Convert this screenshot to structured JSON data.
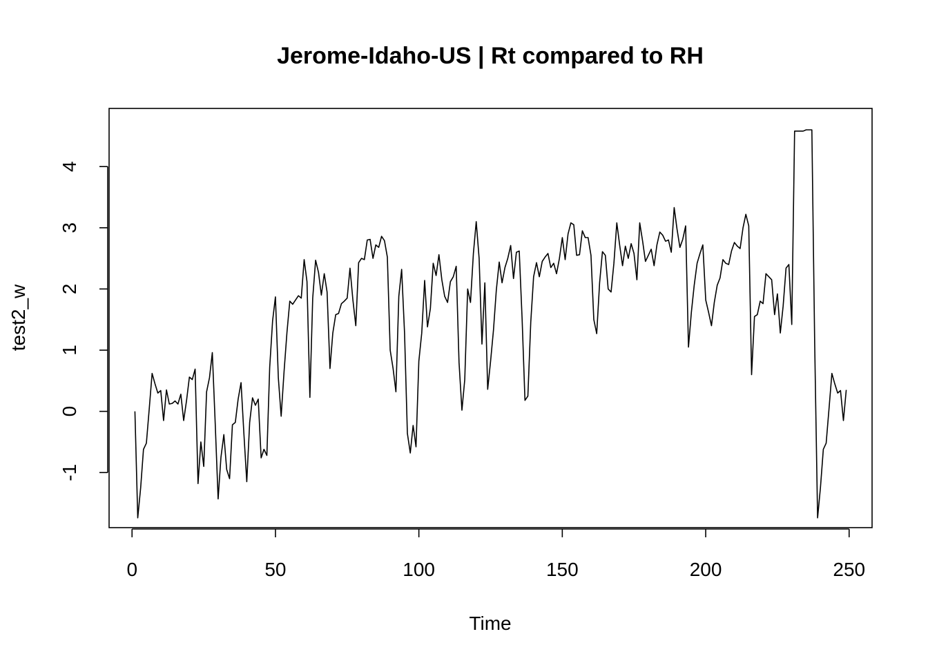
{
  "chart_data": {
    "type": "line",
    "title": "Jerome-Idaho-US | Rt compared to RH",
    "xlabel": "Time",
    "ylabel": "test2_w",
    "xlim": [
      -8,
      258
    ],
    "ylim": [
      -1.9,
      4.95
    ],
    "x_ticks": [
      0,
      50,
      100,
      150,
      200,
      250
    ],
    "y_ticks": [
      -1,
      0,
      1,
      2,
      3,
      4
    ],
    "x_tick_labels": [
      "0",
      "50",
      "100",
      "150",
      "200",
      "250"
    ],
    "y_tick_labels": [
      "-1",
      "0",
      "1",
      "2",
      "3",
      "4"
    ],
    "grid": false,
    "series": [
      {
        "x_start": 1,
        "values": [
          0.0,
          -1.74,
          -1.25,
          -0.62,
          -0.52,
          0.05,
          0.62,
          0.45,
          0.3,
          0.34,
          -0.15,
          0.35,
          0.12,
          0.13,
          0.17,
          0.12,
          0.28,
          -0.15,
          0.18,
          0.56,
          0.52,
          0.69,
          -1.18,
          -0.5,
          -0.9,
          0.32,
          0.55,
          0.96,
          -0.2,
          -1.43,
          -0.75,
          -0.38,
          -0.95,
          -1.1,
          -0.22,
          -0.18,
          0.2,
          0.47,
          -0.36,
          -1.15,
          -0.18,
          0.22,
          0.1,
          0.2,
          -0.76,
          -0.62,
          -0.72,
          0.72,
          1.48,
          1.87,
          0.55,
          -0.08,
          0.65,
          1.29,
          1.8,
          1.75,
          1.82,
          1.89,
          1.85,
          2.48,
          2.12,
          0.23,
          1.85,
          2.47,
          2.27,
          1.9,
          2.25,
          1.95,
          0.7,
          1.28,
          1.58,
          1.6,
          1.76,
          1.8,
          1.85,
          2.34,
          1.82,
          1.4,
          2.43,
          2.5,
          2.48,
          2.8,
          2.81,
          2.5,
          2.72,
          2.68,
          2.86,
          2.79,
          2.52,
          1.0,
          0.7,
          0.32,
          1.88,
          2.32,
          1.28,
          -0.36,
          -0.68,
          -0.23,
          -0.58,
          0.82,
          1.28,
          2.14,
          1.38,
          1.68,
          2.42,
          2.22,
          2.56,
          2.15,
          1.88,
          1.78,
          2.12,
          2.2,
          2.37,
          0.8,
          0.02,
          0.52,
          2.0,
          1.78,
          2.58,
          3.1,
          2.5,
          1.1,
          2.1,
          0.36,
          0.82,
          1.33,
          1.98,
          2.44,
          2.1,
          2.35,
          2.5,
          2.71,
          2.17,
          2.6,
          2.62,
          1.5,
          0.18,
          0.25,
          1.46,
          2.2,
          2.43,
          2.2,
          2.45,
          2.52,
          2.58,
          2.35,
          2.42,
          2.25,
          2.5,
          2.84,
          2.48,
          2.9,
          3.08,
          3.05,
          2.55,
          2.56,
          2.95,
          2.84,
          2.84,
          2.55,
          1.5,
          1.27,
          2.1,
          2.61,
          2.55,
          2.0,
          1.95,
          2.42,
          3.08,
          2.72,
          2.38,
          2.7,
          2.5,
          2.74,
          2.58,
          2.15,
          3.08,
          2.78,
          2.45,
          2.55,
          2.65,
          2.38,
          2.72,
          2.93,
          2.88,
          2.78,
          2.8,
          2.6,
          3.33,
          2.98,
          2.68,
          2.81,
          3.03,
          1.05,
          1.62,
          2.06,
          2.42,
          2.58,
          2.72,
          1.82,
          1.62,
          1.4,
          1.78,
          2.06,
          2.18,
          2.48,
          2.42,
          2.4,
          2.62,
          2.76,
          2.7,
          2.66,
          3.0,
          3.22,
          3.03,
          0.6,
          1.55,
          1.58,
          1.8,
          1.76,
          2.25,
          2.2,
          2.15,
          1.58,
          1.92,
          1.28,
          1.72,
          2.34,
          2.4,
          1.42,
          4.58,
          4.58,
          4.58,
          4.58,
          4.6,
          4.6,
          4.6,
          1.1,
          -1.74,
          -1.25,
          -0.62,
          -0.52,
          0.05,
          0.62,
          0.45,
          0.3,
          0.34,
          -0.15,
          0.35
        ]
      }
    ]
  }
}
